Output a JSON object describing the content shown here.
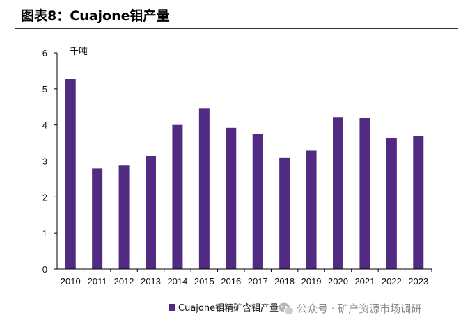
{
  "figure": {
    "title": "图表8：Cuajone钼产量"
  },
  "watermark": {
    "text": "公众号 · 矿产资源市场调研",
    "icon": "wechat-icon"
  },
  "colors": {
    "bar": "#512a82",
    "axis": "#000000",
    "text": "#111111"
  },
  "chart_data": {
    "type": "bar",
    "title": "图表8：Cuajone钼产量",
    "unit_label": "千吨",
    "xlabel": "",
    "ylabel": "千吨",
    "ylim": [
      0,
      6
    ],
    "yticks": [
      0,
      1,
      2,
      3,
      4,
      5,
      6
    ],
    "grid": false,
    "legend_position": "bottom",
    "categories": [
      "2010",
      "2011",
      "2012",
      "2013",
      "2014",
      "2015",
      "2016",
      "2017",
      "2018",
      "2019",
      "2020",
      "2021",
      "2022",
      "2023"
    ],
    "series": [
      {
        "name": "Cuajone钼精矿含钼产量",
        "values": [
          5.27,
          2.79,
          2.87,
          3.13,
          4.0,
          4.45,
          3.92,
          3.75,
          3.09,
          3.29,
          4.22,
          4.19,
          3.63,
          3.7
        ]
      }
    ]
  }
}
